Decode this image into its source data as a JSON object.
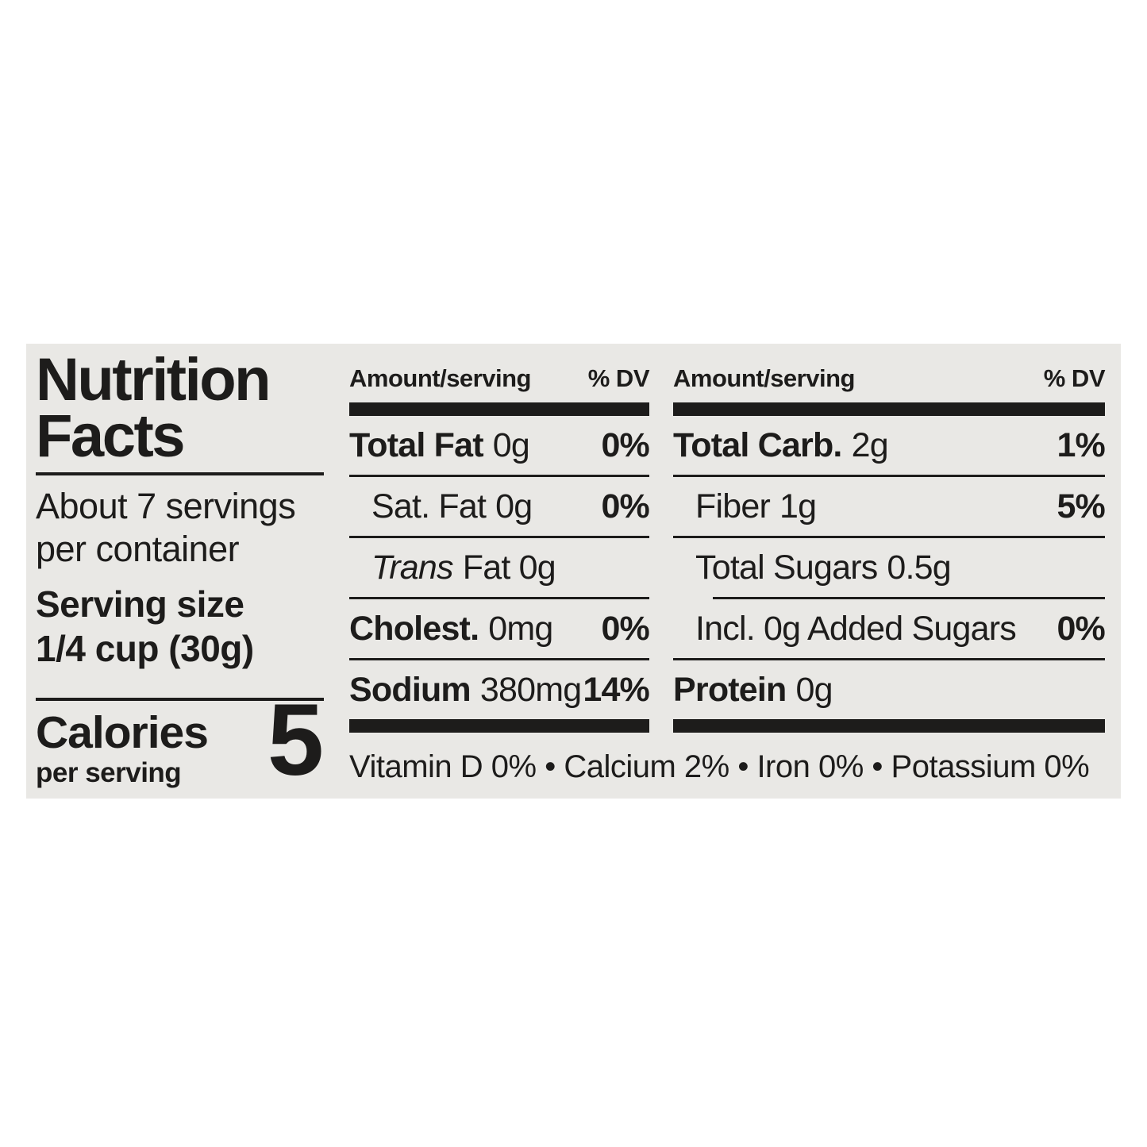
{
  "label": {
    "title_line1": "Nutrition",
    "title_line2": "Facts",
    "servings_line1": "About 7 servings",
    "servings_line2": "per container",
    "serving_size_label": "Serving size",
    "serving_size_value": "1/4 cup (30g)",
    "calories_label": "Calories",
    "calories_sub": "per serving",
    "calories_value": "5"
  },
  "columns": [
    {
      "header_left": "Amount/serving",
      "header_right": "% DV",
      "rows": [
        {
          "name": "Total Fat",
          "amount": "0g",
          "dv": "0%"
        },
        {
          "name": "Sat. Fat",
          "amount": "0g",
          "dv": "0%"
        },
        {
          "name": "Trans",
          "amount": "Fat 0g",
          "dv": ""
        },
        {
          "name": "Cholest.",
          "amount": "0mg",
          "dv": "0%"
        },
        {
          "name": "Sodium",
          "amount": "380mg",
          "dv": "14%"
        }
      ]
    },
    {
      "header_left": "Amount/serving",
      "header_right": "% DV",
      "rows": [
        {
          "name": "Total Carb.",
          "amount": "2g",
          "dv": "1%"
        },
        {
          "name": "Fiber",
          "amount": "1g",
          "dv": "5%"
        },
        {
          "name": "Total Sugars",
          "amount": "0.5g",
          "dv": ""
        },
        {
          "name": "Incl. 0g Added Sugars",
          "amount": "",
          "dv": "0%"
        },
        {
          "name": "Protein",
          "amount": "0g",
          "dv": ""
        }
      ]
    }
  ],
  "micronutrients": "Vitamin D 0% • Calcium 2% • Iron 0% • Potassium 0%",
  "colors": {
    "label_bg": "#e9e8e5",
    "ink": "#1d1c1b",
    "page_bg": "#ffffff"
  }
}
